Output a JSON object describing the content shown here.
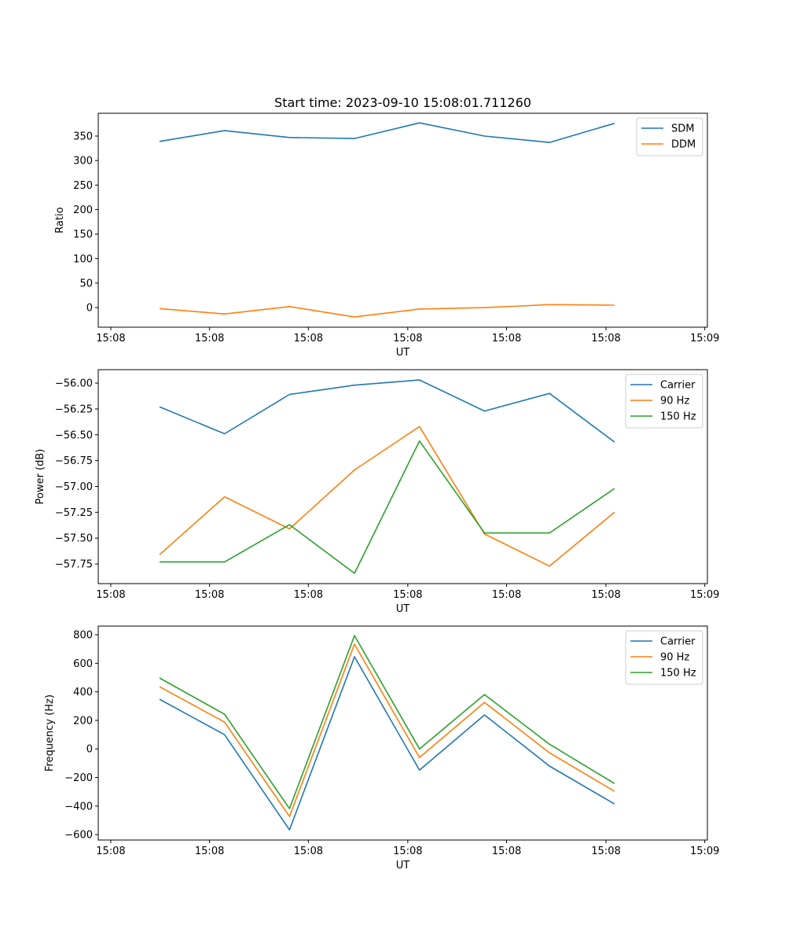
{
  "chart_data": [
    {
      "type": "line",
      "title": "Start time: 2023-09-10 15:08:01.711260",
      "xlabel": "UT",
      "ylabel": "Ratio",
      "x": [
        0,
        1,
        2,
        3,
        4,
        5,
        6,
        7
      ],
      "xlim": [
        -0.943,
        8.43
      ],
      "xticks": [
        -0.75,
        0.77,
        2.29,
        3.82,
        5.34,
        6.87,
        8.39
      ],
      "xtick_labels": [
        "15:08",
        "15:08",
        "15:08",
        "15:08",
        "15:08",
        "15:08",
        "15:09"
      ],
      "ylim": [
        -40,
        396.5
      ],
      "yticks": [
        0,
        50,
        100,
        150,
        200,
        250,
        300,
        350
      ],
      "ytick_labels": [
        "0",
        "50",
        "100",
        "150",
        "200",
        "250",
        "300",
        "350"
      ],
      "legend": "top-right",
      "series": [
        {
          "name": "SDM",
          "color": "#1f77b4",
          "values": [
            339,
            361,
            347,
            345,
            377,
            350,
            337,
            376
          ]
        },
        {
          "name": "DDM",
          "color": "#ff7f0e",
          "values": [
            -2,
            -13,
            2,
            -19,
            -3,
            0,
            6,
            5
          ]
        }
      ]
    },
    {
      "type": "line",
      "title": "",
      "xlabel": "UT",
      "ylabel": "Power (dB)",
      "x": [
        0,
        1,
        2,
        3,
        4,
        5,
        6,
        7
      ],
      "xlim": [
        -0.943,
        8.43
      ],
      "xticks": [
        -0.75,
        0.77,
        2.29,
        3.82,
        5.34,
        6.87,
        8.39
      ],
      "xtick_labels": [
        "15:08",
        "15:08",
        "15:08",
        "15:08",
        "15:08",
        "15:08",
        "15:09"
      ],
      "ylim": [
        -57.94,
        -55.87
      ],
      "yticks": [
        -57.75,
        -57.5,
        -57.25,
        -57.0,
        -56.75,
        -56.5,
        -56.25,
        -56.0
      ],
      "ytick_labels": [
        "−57.75",
        "−57.50",
        "−57.25",
        "−57.00",
        "−56.75",
        "−56.50",
        "−56.25",
        "−56.00"
      ],
      "legend": "top-right",
      "series": [
        {
          "name": "Carrier",
          "color": "#1f77b4",
          "values": [
            -56.23,
            -56.49,
            -56.11,
            -56.02,
            -55.97,
            -56.27,
            -56.1,
            -56.57
          ]
        },
        {
          "name": "90 Hz",
          "color": "#ff7f0e",
          "values": [
            -57.66,
            -57.1,
            -57.41,
            -56.84,
            -56.42,
            -57.46,
            -57.77,
            -57.25
          ]
        },
        {
          "name": "150 Hz",
          "color": "#2ca02c",
          "values": [
            -57.73,
            -57.73,
            -57.37,
            -57.84,
            -56.56,
            -57.45,
            -57.45,
            -57.02
          ]
        }
      ]
    },
    {
      "type": "line",
      "title": "",
      "xlabel": "UT",
      "ylabel": "Frequency (Hz)",
      "x": [
        0,
        1,
        2,
        3,
        4,
        5,
        6,
        7
      ],
      "xlim": [
        -0.943,
        8.43
      ],
      "xticks": [
        -0.75,
        0.77,
        2.29,
        3.82,
        5.34,
        6.87,
        8.39
      ],
      "xtick_labels": [
        "15:08",
        "15:08",
        "15:08",
        "15:08",
        "15:08",
        "15:08",
        "15:09"
      ],
      "ylim": [
        -638,
        860.6
      ],
      "yticks": [
        -600,
        -400,
        -200,
        0,
        200,
        400,
        600,
        800
      ],
      "ytick_labels": [
        "−600",
        "−400",
        "−200",
        "0",
        "200",
        "400",
        "600",
        "800"
      ],
      "legend": "top-right",
      "series": [
        {
          "name": "Carrier",
          "color": "#1f77b4",
          "values": [
            348,
            100,
            -567,
            646,
            -148,
            238,
            -120,
            -385
          ]
        },
        {
          "name": "90 Hz",
          "color": "#ff7f0e",
          "values": [
            436,
            188,
            -473,
            734,
            -60,
            326,
            -27,
            -297
          ]
        },
        {
          "name": "150 Hz",
          "color": "#2ca02c",
          "values": [
            497,
            243,
            -418,
            794,
            0,
            381,
            33,
            -242
          ]
        }
      ]
    }
  ]
}
